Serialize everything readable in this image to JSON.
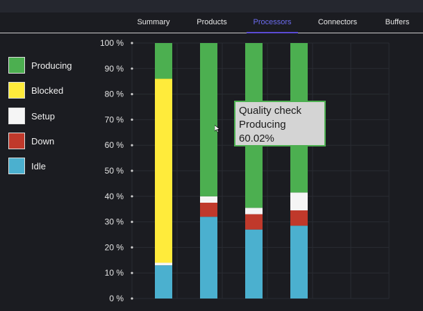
{
  "tabs": [
    {
      "label": "Summary",
      "active": false
    },
    {
      "label": "Products",
      "active": false
    },
    {
      "label": "Processors",
      "active": true
    },
    {
      "label": "Connectors",
      "active": false
    },
    {
      "label": "Buffers",
      "active": false
    }
  ],
  "legend": [
    {
      "label": "Producing",
      "color": "#4caf50"
    },
    {
      "label": "Blocked",
      "color": "#ffeb3b"
    },
    {
      "label": "Setup",
      "color": "#f5f5f5"
    },
    {
      "label": "Down",
      "color": "#c0392b"
    },
    {
      "label": "Idle",
      "color": "#4bb0cf"
    }
  ],
  "tooltip": {
    "name": "Quality check",
    "state": "Producing",
    "value": "60.02%"
  },
  "chart_data": {
    "type": "bar",
    "stacked": true,
    "ylim": [
      0,
      100
    ],
    "y_ticks": [
      "0 %",
      "10 %",
      "20 %",
      "30 %",
      "40 %",
      "50 %",
      "60 %",
      "70 %",
      "80 %",
      "90 %",
      "100 %"
    ],
    "grid": true,
    "series": [
      {
        "name": "Idle",
        "color": "#4bb0cf",
        "values": [
          13,
          32,
          27,
          28.5
        ]
      },
      {
        "name": "Down",
        "color": "#c0392b",
        "values": [
          0,
          5.5,
          6,
          6
        ]
      },
      {
        "name": "Setup",
        "color": "#f5f5f5",
        "values": [
          1,
          2.5,
          2.5,
          7
        ]
      },
      {
        "name": "Blocked",
        "color": "#ffeb3b",
        "values": [
          72,
          0,
          0,
          0
        ]
      },
      {
        "name": "Producing",
        "color": "#4caf50",
        "values": [
          14,
          60,
          64.5,
          58.5
        ]
      }
    ]
  }
}
